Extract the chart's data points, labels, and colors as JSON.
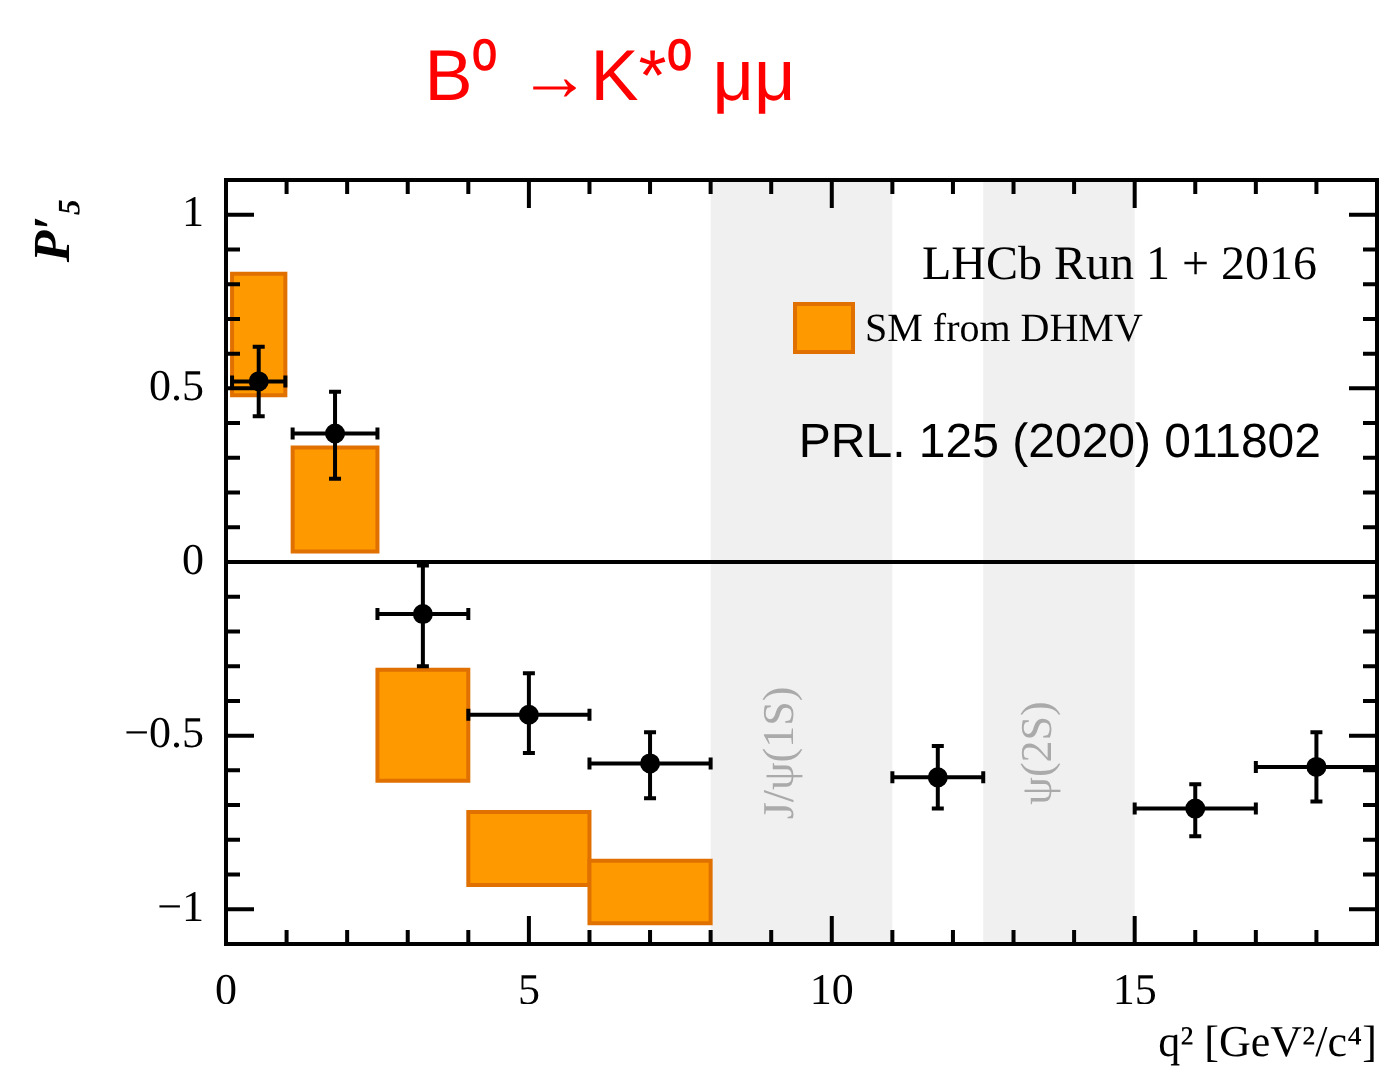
{
  "chart_data": {
    "type": "scatter",
    "title": "B⁰ →K*⁰ μμ",
    "xlabel": "q² [GeV²/c⁴]",
    "ylabel": "P′₅",
    "xlim": [
      0,
      19
    ],
    "ylim": [
      -1.1,
      1.1
    ],
    "xticks": [
      0,
      {
        "value": 1,
        "label": null
      },
      {
        "value": 2,
        "label": null
      },
      {
        "value": 3,
        "label": null
      },
      {
        "value": 4,
        "label": null
      },
      5,
      {
        "value": 6,
        "label": null
      },
      {
        "value": 7,
        "label": null
      },
      {
        "value": 8,
        "label": null
      },
      {
        "value": 9,
        "label": null
      },
      10,
      {
        "value": 11,
        "label": null
      },
      {
        "value": 12,
        "label": null
      },
      {
        "value": 13,
        "label": null
      },
      {
        "value": 14,
        "label": null
      },
      15,
      {
        "value": 16,
        "label": null
      },
      {
        "value": 17,
        "label": null
      },
      {
        "value": 18,
        "label": null
      }
    ],
    "yticks": [
      {
        "value": -1,
        "label": "−1"
      },
      {
        "value": -0.9,
        "label": null
      },
      {
        "value": -0.8,
        "label": null
      },
      {
        "value": -0.7,
        "label": null
      },
      {
        "value": -0.6,
        "label": null
      },
      {
        "value": -0.5,
        "label": "−0.5"
      },
      {
        "value": -0.4,
        "label": null
      },
      {
        "value": -0.3,
        "label": null
      },
      {
        "value": -0.2,
        "label": null
      },
      {
        "value": -0.1,
        "label": null
      },
      0,
      {
        "value": 0.1,
        "label": null
      },
      {
        "value": 0.2,
        "label": null
      },
      {
        "value": 0.3,
        "label": null
      },
      {
        "value": 0.4,
        "label": null
      },
      0.5,
      {
        "value": 0.6,
        "label": null
      },
      {
        "value": 0.7,
        "label": null
      },
      {
        "value": 0.8,
        "label": null
      },
      {
        "value": 0.9,
        "label": null
      },
      1
    ],
    "legend": "top right",
    "marker": "circle",
    "annotations": [
      "LHCb Run 1 + 2016",
      "PRL. 125 (2020) 011802"
    ],
    "bands": [
      {
        "axis": "x",
        "from": 8,
        "to": 11,
        "label": "J/ψ(1S)",
        "color": "#f0f0f0"
      },
      {
        "axis": "x",
        "from": 12.5,
        "to": 15,
        "label": "ψ(2S)",
        "color": "#f0f0f0"
      }
    ],
    "ref_lines": [
      {
        "axis": "y",
        "value": 0,
        "color": "#000000"
      }
    ],
    "series": [
      {
        "type": "histogram",
        "name": "SM from DHMV",
        "color": "#ff9900",
        "bins": [
          0.1,
          0.98,
          1.1,
          2.5,
          4,
          6,
          8
        ],
        "base": [
          0.48,
          null,
          0.03,
          -0.63,
          -0.93,
          -1.04
        ],
        "values": [
          0.35,
          null,
          0.3,
          0.32,
          0.21,
          0.18
        ]
      },
      {
        "type": "scatter",
        "color": "#000000",
        "x": [
          0.54,
          1.8,
          3.25,
          5,
          7,
          11.75,
          16,
          18
        ],
        "values": [
          0.52,
          0.37,
          -0.15,
          -0.44,
          -0.58,
          -0.62,
          -0.71,
          -0.59
        ],
        "errors": [
          [
            0.42,
            0.62
          ],
          [
            0.24,
            0.49
          ],
          [
            -0.3,
            -0.01
          ],
          [
            -0.55,
            -0.32
          ],
          [
            -0.68,
            -0.49
          ],
          [
            -0.71,
            -0.53
          ],
          [
            -0.79,
            -0.64
          ],
          [
            -0.69,
            -0.49
          ]
        ],
        "xerrors": [
          0.44,
          0.7,
          0.75,
          1,
          1,
          0.75,
          1,
          1
        ]
      }
    ]
  }
}
